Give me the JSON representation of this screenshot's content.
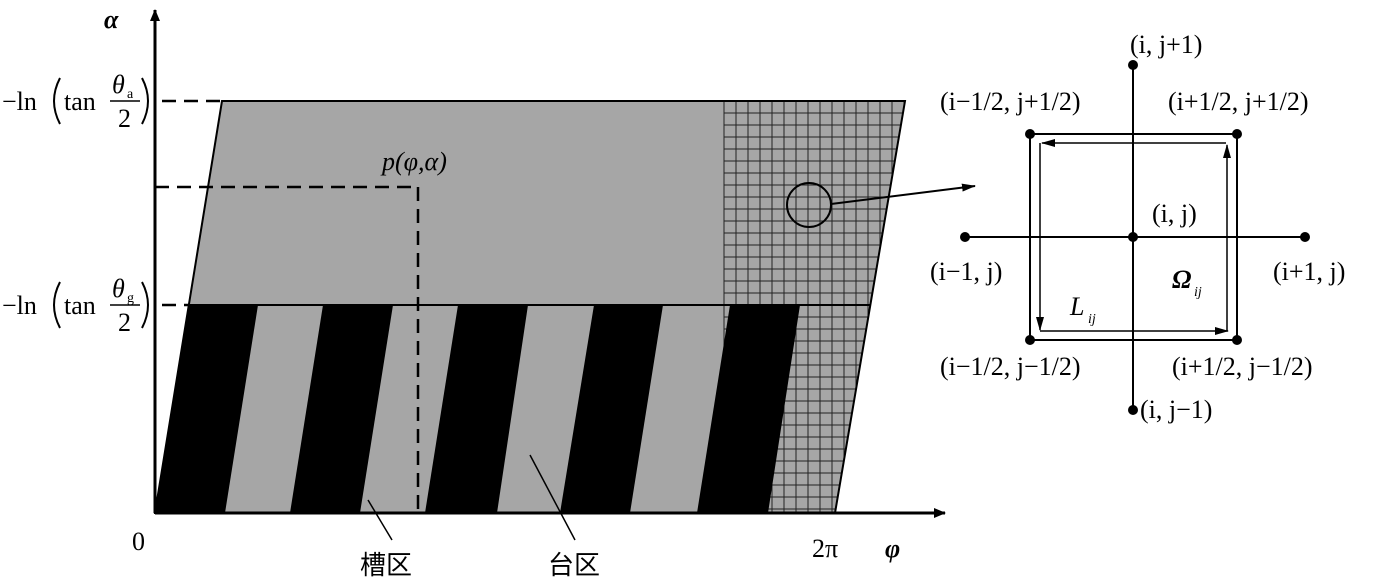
{
  "diagram": {
    "left": {
      "y_axis_label": "α",
      "x_axis_label": "φ",
      "origin_label": "0",
      "x_end_label": "2π",
      "point_label": "p(φ,α)",
      "top_level": {
        "prefix": "−ln",
        "func": "tan",
        "numerator": "θ",
        "sub": "a",
        "denominator": "2"
      },
      "mid_level": {
        "prefix": "−ln",
        "func": "tan",
        "numerator": "θ",
        "sub": "g",
        "denominator": "2"
      },
      "groove_label": "槽区",
      "land_label": "台区"
    },
    "right": {
      "nodes": [
        {
          "label": "(i, j+1)"
        },
        {
          "label": "(i−1/2, j+1/2)"
        },
        {
          "label": "(i+1/2, j+1/2)"
        },
        {
          "label": "(i, j)"
        },
        {
          "label": "(i−1, j)"
        },
        {
          "label": "(i+1, j)"
        },
        {
          "label": "(i−1/2, j−1/2)"
        },
        {
          "label": "(i+1/2, j−1/2)"
        },
        {
          "label": "(i, j−1)"
        }
      ],
      "omega": {
        "symbol": "Ω",
        "sub": "ij"
      },
      "boundary": {
        "symbol": "L",
        "sub": "ij"
      }
    }
  }
}
